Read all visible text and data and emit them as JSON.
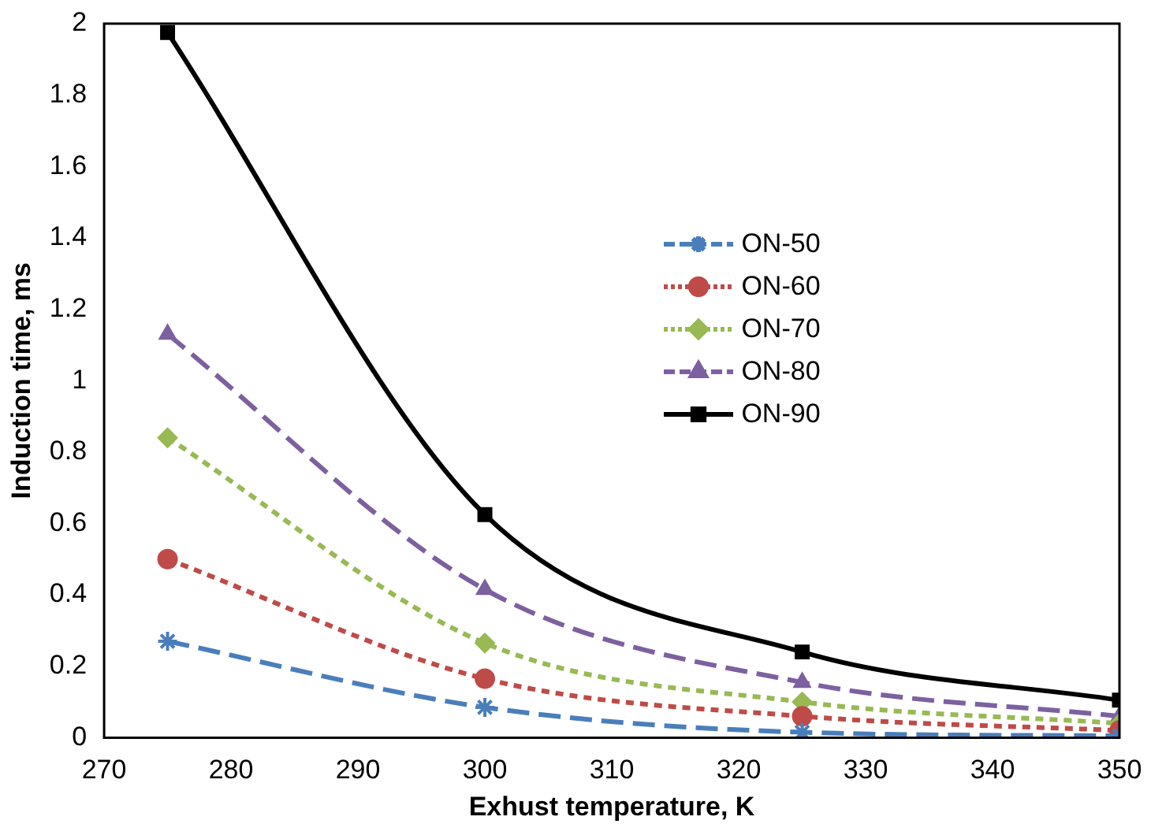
{
  "chart_data": {
    "type": "line",
    "xlabel": "Exhust temperature, K",
    "ylabel": "Induction time, ms",
    "x": [
      275,
      300,
      325,
      350
    ],
    "series": [
      {
        "name": "ON-50",
        "color": "#4a7ebb",
        "marker": "cross",
        "line_style": "dashed",
        "values": [
          0.27,
          0.085,
          0.015,
          0.005
        ]
      },
      {
        "name": "ON-60",
        "color": "#be4b48",
        "marker": "circle",
        "line_style": "dotted",
        "values": [
          0.5,
          0.165,
          0.06,
          0.02
        ]
      },
      {
        "name": "ON-70",
        "color": "#98b954",
        "marker": "diamond",
        "line_style": "dotted",
        "values": [
          0.84,
          0.265,
          0.1,
          0.04
        ]
      },
      {
        "name": "ON-80",
        "color": "#7d60a0",
        "marker": "triangle",
        "line_style": "dashed",
        "values": [
          1.13,
          0.415,
          0.155,
          0.06
        ]
      },
      {
        "name": "ON-90",
        "color": "#000000",
        "marker": "square",
        "line_style": "solid",
        "values": [
          1.975,
          0.625,
          0.24,
          0.105
        ]
      }
    ],
    "xlim": [
      270,
      350
    ],
    "xticks": [
      270,
      280,
      290,
      300,
      310,
      320,
      330,
      340,
      350
    ],
    "ylim": [
      0,
      2
    ],
    "yticks": [
      0,
      0.2,
      0.4,
      0.6,
      0.8,
      1,
      1.2,
      1.4,
      1.6,
      1.8,
      2
    ],
    "grid": false,
    "legend": "right"
  }
}
